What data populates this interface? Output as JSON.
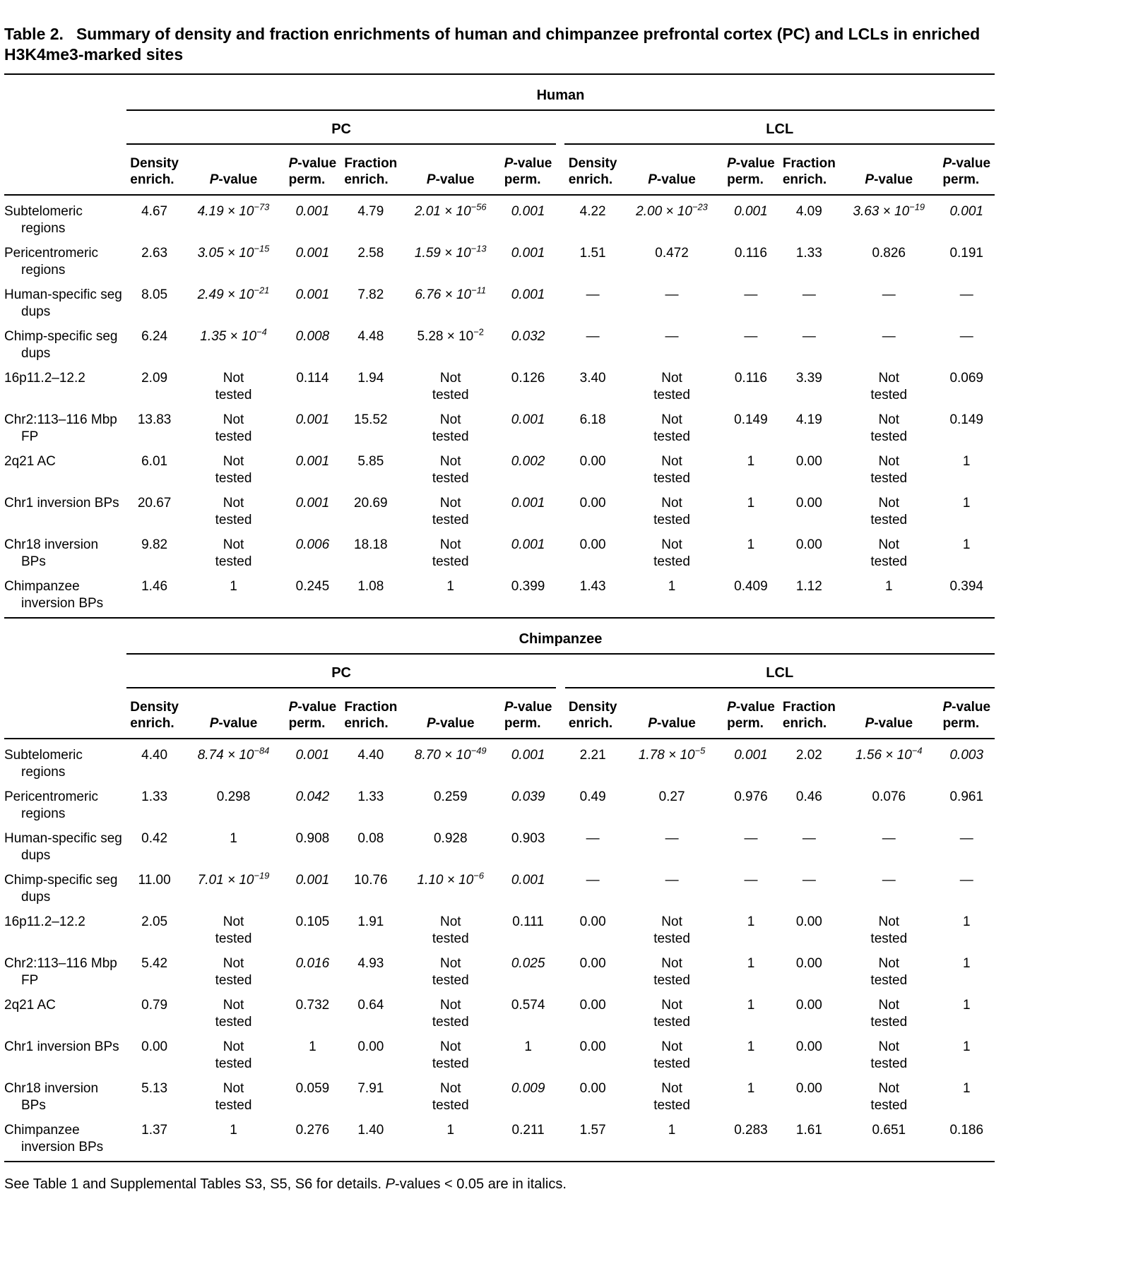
{
  "title": {
    "label": "Table 2.",
    "text": "Summary of density and fraction enrichments of human and chimpanzee prefrontal cortex (PC) and LCLs in enriched H3K4me3-marked sites"
  },
  "column_headers": [
    "Density|enrich.",
    "*P*-value",
    "*P*-value|perm.",
    "Fraction|enrich.",
    "*P*-value",
    "*P*-value|perm."
  ],
  "panels": [
    {
      "species": "Human",
      "groups": [
        "PC",
        "LCL"
      ],
      "rows": [
        {
          "label": "Subtelomeric regions",
          "cells": [
            "4.67",
            "*4.19 × 10^−73*",
            "*0.001*",
            "4.79",
            "*2.01 × 10^−56*",
            "*0.001*",
            "4.22",
            "*2.00 × 10^−23*",
            "*0.001*",
            "4.09",
            "*3.63 × 10^−19*",
            "*0.001*"
          ]
        },
        {
          "label": "Pericentromeric regions",
          "cells": [
            "2.63",
            "*3.05 × 10^−15*",
            "*0.001*",
            "2.58",
            "*1.59 × 10^−13*",
            "*0.001*",
            "1.51",
            "0.472",
            "0.116",
            "1.33",
            "0.826",
            "0.191"
          ]
        },
        {
          "label": "Human-specific seg dups",
          "cells": [
            "8.05",
            "*2.49 × 10^−21*",
            "*0.001*",
            "7.82",
            "*6.76 × 10^−11*",
            "*0.001*",
            "—",
            "—",
            "—",
            "—",
            "—",
            "—"
          ]
        },
        {
          "label": "Chimp-specific seg dups",
          "cells": [
            "6.24",
            "*1.35 × 10^−4*",
            "*0.008*",
            "4.48",
            "5.28 × 10^−2",
            "*0.032*",
            "—",
            "—",
            "—",
            "—",
            "—",
            "—"
          ]
        },
        {
          "label": "16p11.2–12.2",
          "cells": [
            "2.09",
            "Not tested",
            "0.114",
            "1.94",
            "Not tested",
            "0.126",
            "3.40",
            "Not tested",
            "0.116",
            "3.39",
            "Not tested",
            "0.069"
          ]
        },
        {
          "label": "Chr2:113–116 Mbp FP",
          "cells": [
            "13.83",
            "Not tested",
            "*0.001*",
            "15.52",
            "Not tested",
            "*0.001*",
            "6.18",
            "Not tested",
            "0.149",
            "4.19",
            "Not tested",
            "0.149"
          ]
        },
        {
          "label": "2q21 AC",
          "cells": [
            "6.01",
            "Not tested",
            "*0.001*",
            "5.85",
            "Not tested",
            "*0.002*",
            "0.00",
            "Not tested",
            "1",
            "0.00",
            "Not tested",
            "1"
          ]
        },
        {
          "label": "Chr1 inversion BPs",
          "cells": [
            "20.67",
            "Not tested",
            "*0.001*",
            "20.69",
            "Not tested",
            "*0.001*",
            "0.00",
            "Not tested",
            "1",
            "0.00",
            "Not tested",
            "1"
          ]
        },
        {
          "label": "Chr18 inversion BPs",
          "cells": [
            "9.82",
            "Not tested",
            "*0.006*",
            "18.18",
            "Not tested",
            "*0.001*",
            "0.00",
            "Not tested",
            "1",
            "0.00",
            "Not tested",
            "1"
          ]
        },
        {
          "label": "Chimpanzee inversion BPs",
          "cells": [
            "1.46",
            "1",
            "0.245",
            "1.08",
            "1",
            "0.399",
            "1.43",
            "1",
            "0.409",
            "1.12",
            "1",
            "0.394"
          ]
        }
      ]
    },
    {
      "species": "Chimpanzee",
      "groups": [
        "PC",
        "LCL"
      ],
      "rows": [
        {
          "label": "Subtelomeric regions",
          "cells": [
            "4.40",
            "*8.74 × 10^−84*",
            "*0.001*",
            "4.40",
            "*8.70 × 10^−49*",
            "*0.001*",
            "2.21",
            "*1.78 × 10^−5*",
            "*0.001*",
            "2.02",
            "*1.56 × 10^−4*",
            "*0.003*"
          ]
        },
        {
          "label": "Pericentromeric regions",
          "cells": [
            "1.33",
            "0.298",
            "*0.042*",
            "1.33",
            "0.259",
            "*0.039*",
            "0.49",
            "0.27",
            "0.976",
            "0.46",
            "0.076",
            "0.961"
          ]
        },
        {
          "label": "Human-specific seg dups",
          "cells": [
            "0.42",
            "1",
            "0.908",
            "0.08",
            "0.928",
            "0.903",
            "—",
            "—",
            "—",
            "—",
            "—",
            "—"
          ]
        },
        {
          "label": "Chimp-specific seg dups",
          "cells": [
            "11.00",
            "*7.01 × 10^−19*",
            "*0.001*",
            "10.76",
            "*1.10 × 10^−6*",
            "*0.001*",
            "—",
            "—",
            "—",
            "—",
            "—",
            "—"
          ]
        },
        {
          "label": "16p11.2–12.2",
          "cells": [
            "2.05",
            "Not tested",
            "0.105",
            "1.91",
            "Not tested",
            "0.111",
            "0.00",
            "Not tested",
            "1",
            "0.00",
            "Not tested",
            "1"
          ]
        },
        {
          "label": "Chr2:113–116 Mbp FP",
          "cells": [
            "5.42",
            "Not tested",
            "*0.016*",
            "4.93",
            "Not tested",
            "*0.025*",
            "0.00",
            "Not tested",
            "1",
            "0.00",
            "Not tested",
            "1"
          ]
        },
        {
          "label": "2q21 AC",
          "cells": [
            "0.79",
            "Not tested",
            "0.732",
            "0.64",
            "Not tested",
            "0.574",
            "0.00",
            "Not tested",
            "1",
            "0.00",
            "Not tested",
            "1"
          ]
        },
        {
          "label": "Chr1 inversion BPs",
          "cells": [
            "0.00",
            "Not tested",
            "1",
            "0.00",
            "Not tested",
            "1",
            "0.00",
            "Not tested",
            "1",
            "0.00",
            "Not tested",
            "1"
          ]
        },
        {
          "label": "Chr18 inversion BPs",
          "cells": [
            "5.13",
            "Not tested",
            "0.059",
            "7.91",
            "Not tested",
            "*0.009*",
            "0.00",
            "Not tested",
            "1",
            "0.00",
            "Not tested",
            "1"
          ]
        },
        {
          "label": "Chimpanzee inversion BPs",
          "cells": [
            "1.37",
            "1",
            "0.276",
            "1.40",
            "1",
            "0.211",
            "1.57",
            "1",
            "0.283",
            "1.61",
            "0.651",
            "0.186"
          ]
        }
      ]
    }
  ],
  "footnote": "See Table 1 and Supplemental Tables S3, S5, S6 for details. *P*-values < 0.05 are in italics."
}
